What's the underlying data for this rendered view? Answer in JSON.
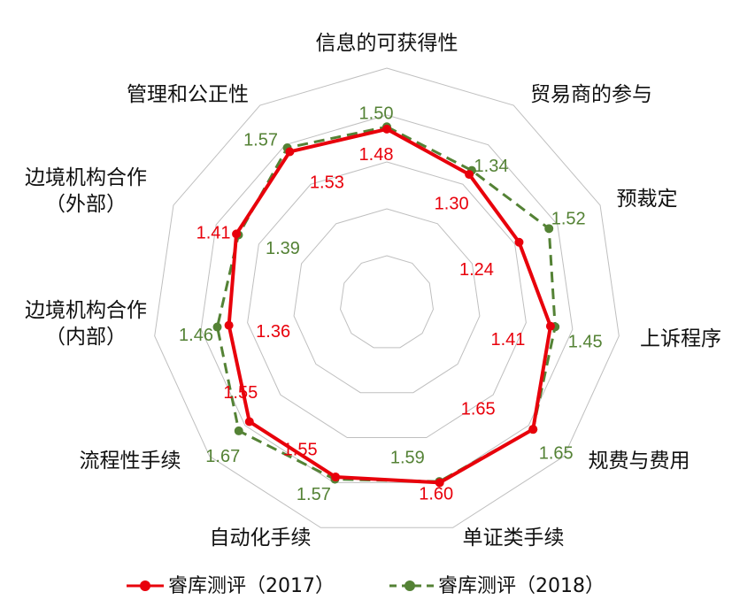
{
  "chart_data": {
    "type": "radar",
    "categories": [
      "信息的可获得性",
      "贸易商的参与",
      "预裁定",
      "上诉程序",
      "规费与费用",
      "单证类手续",
      "自动化手续",
      "流程性手续",
      "边境机构合作\n（内部）",
      "边境机构合作\n（外部）",
      "管理和公正性"
    ],
    "rlim": [
      0,
      2
    ],
    "ring_ticks": [
      0.4,
      0.8,
      1.2,
      1.6,
      2.0
    ],
    "grid": true,
    "legend_position": "bottom",
    "series": [
      {
        "name": "睿库测评（2017）",
        "color": "#e8000b",
        "style": "solid",
        "values": [
          1.48,
          1.3,
          1.24,
          1.41,
          1.65,
          1.6,
          1.55,
          1.55,
          1.36,
          1.41,
          1.53
        ],
        "labels": [
          "1.48",
          "1.30",
          "1.24",
          "1.41",
          "1.65",
          "1.60",
          "1.55",
          "1.55",
          "1.36",
          "1.41",
          "1.53"
        ]
      },
      {
        "name": "睿库测评（2018）",
        "color": "#548235",
        "style": "dashed",
        "values": [
          1.5,
          1.34,
          1.52,
          1.45,
          1.65,
          1.59,
          1.57,
          1.67,
          1.46,
          1.39,
          1.57
        ],
        "labels": [
          "1.50",
          "1.34",
          "1.52",
          "1.45",
          "1.65",
          "1.59",
          "1.57",
          "1.67",
          "1.46",
          "1.39",
          "1.57"
        ]
      }
    ]
  }
}
